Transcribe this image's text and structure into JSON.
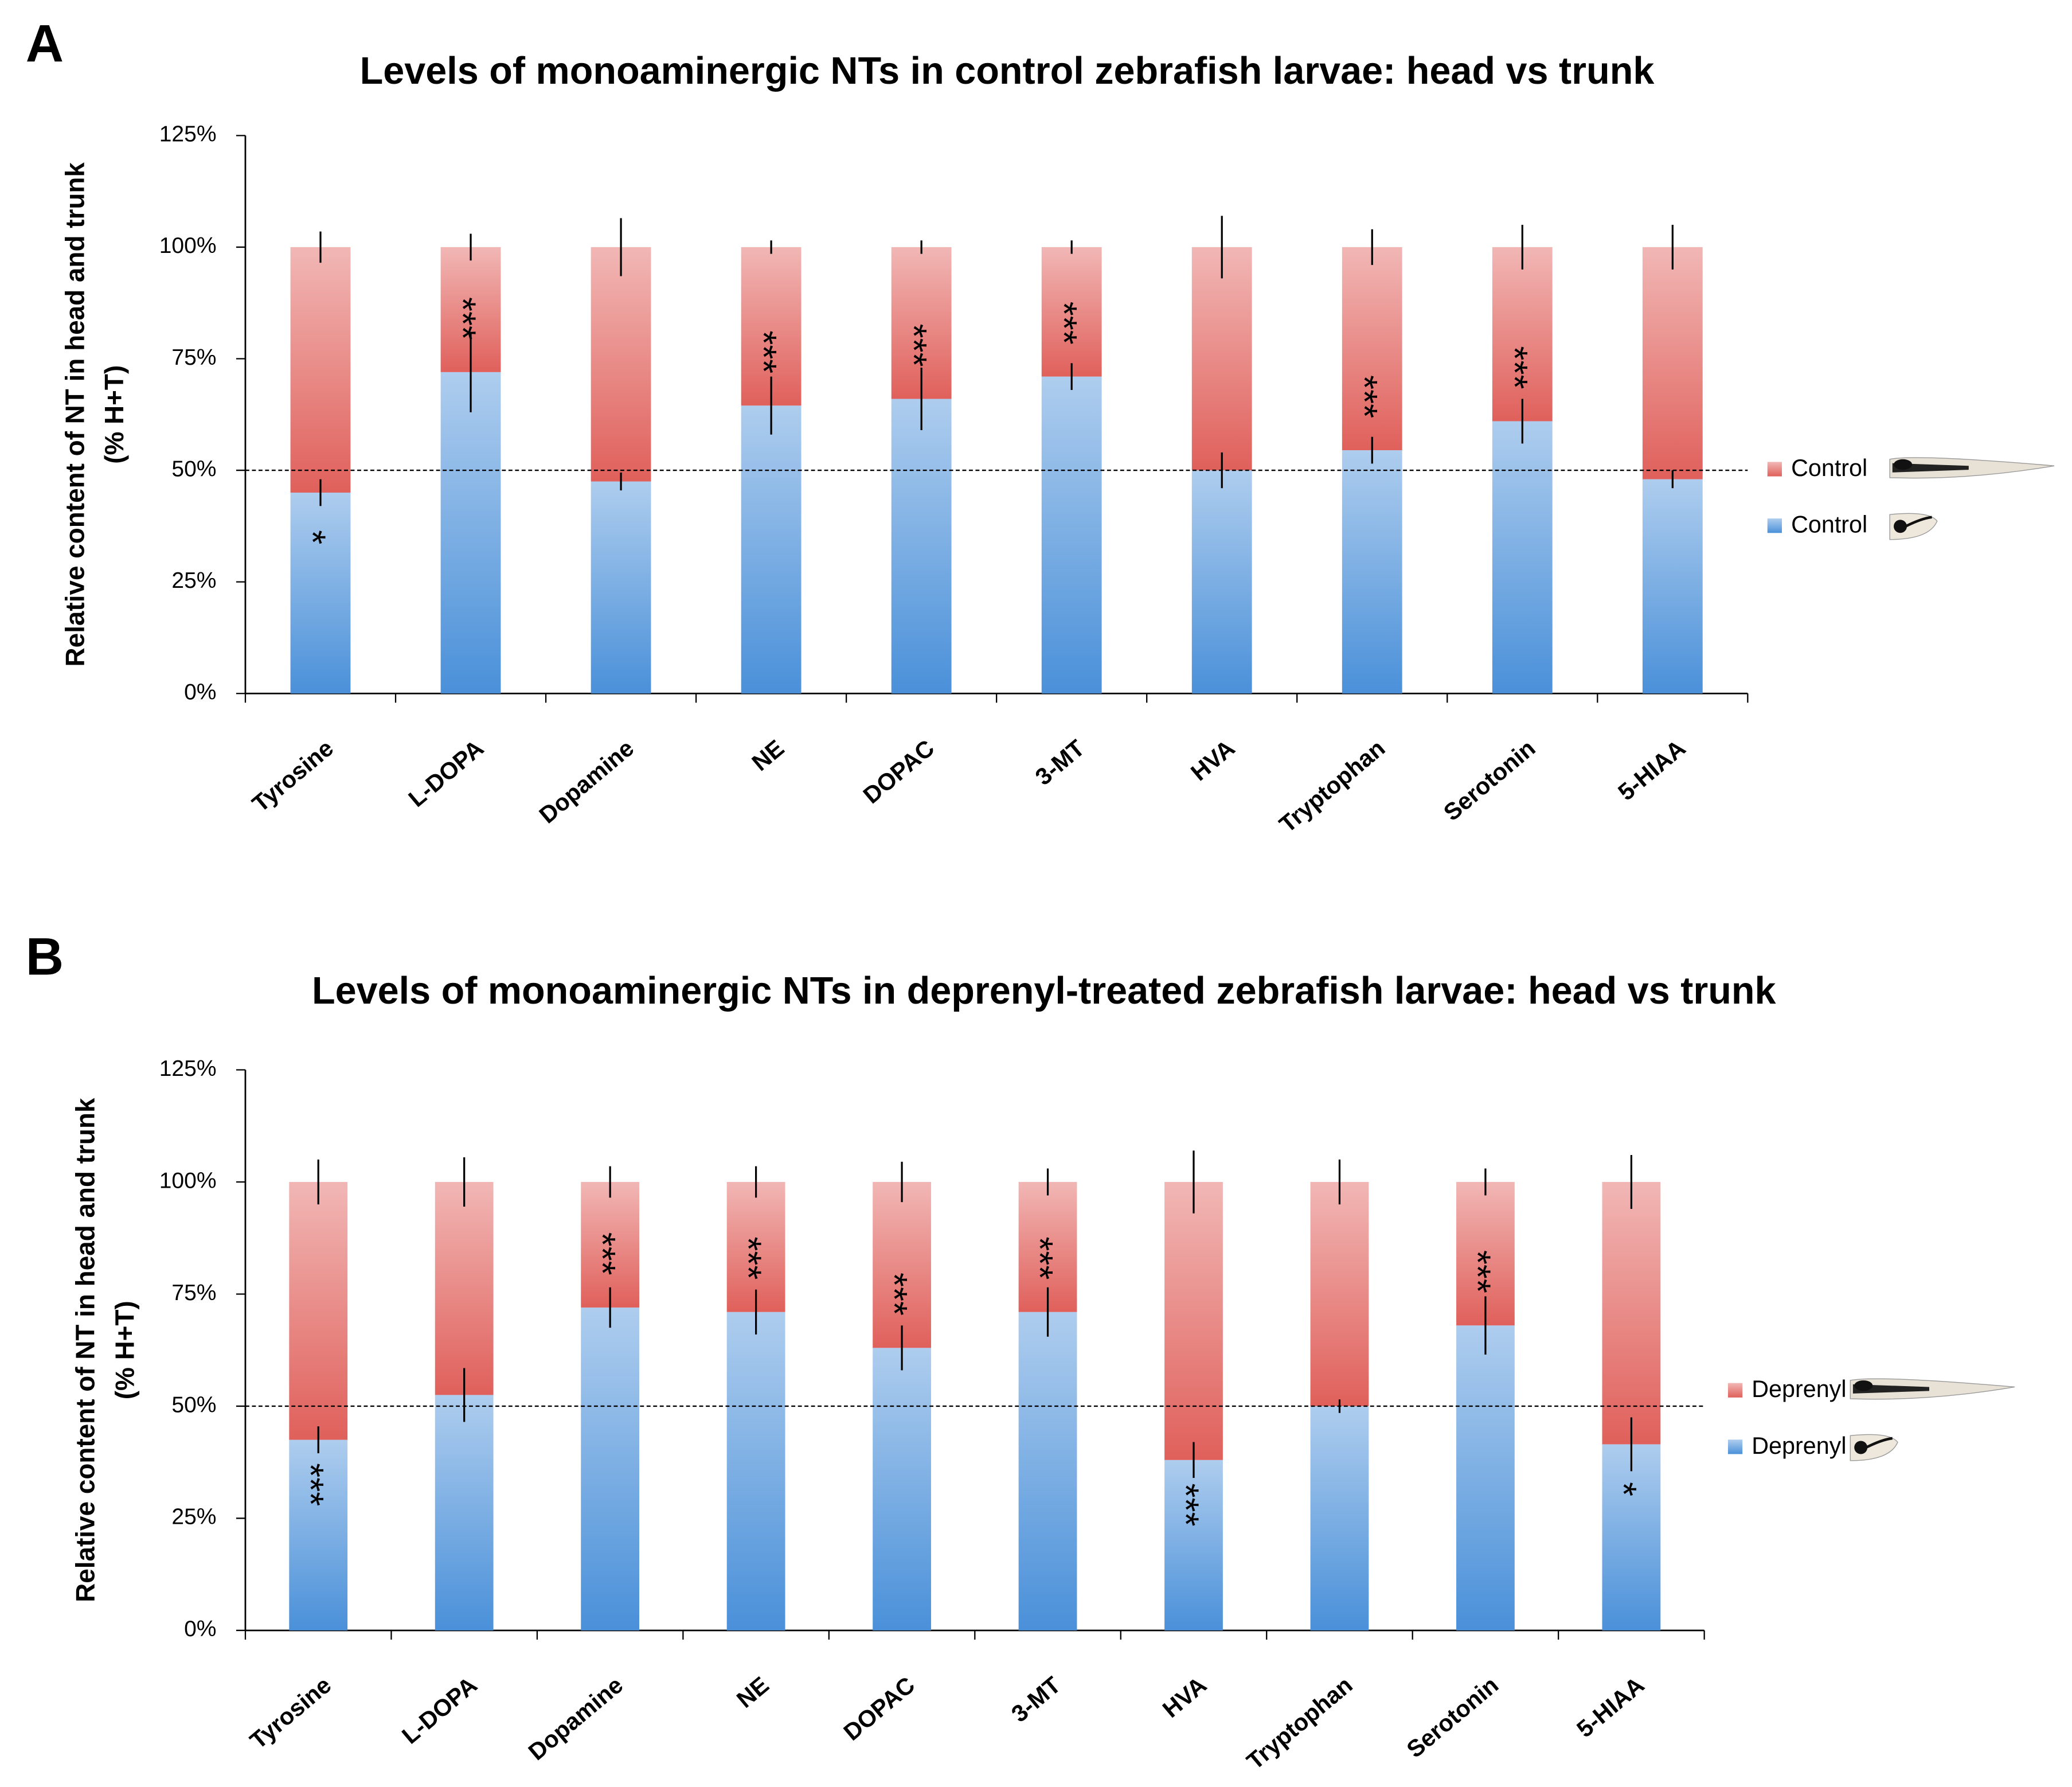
{
  "chart_data": [
    {
      "type": "bar",
      "stacked": true,
      "panel": "A",
      "title": "Levels of monoaminergic NTs in control zebrafish larvae: head vs trunk",
      "ylabel": [
        "Relative content of NT in head and trunk",
        "(% H+T)"
      ],
      "categories": [
        "Tyrosine",
        "L-DOPA",
        "Dopamine",
        "NE",
        "DOPAC",
        "3-MT",
        "HVA",
        "Tryptophan",
        "Serotonin",
        "5-HIAA"
      ],
      "series": [
        {
          "name": "Control",
          "color": "#4a90d9",
          "values": [
            45,
            72,
            47.5,
            64.5,
            66,
            71,
            50,
            54.5,
            61,
            48
          ],
          "errors": [
            3,
            9,
            2,
            6.5,
            7,
            3,
            4,
            3,
            5,
            2
          ]
        },
        {
          "name": "Control",
          "color": "#e0605b",
          "values": [
            55,
            28,
            52.5,
            35.5,
            34,
            29,
            50,
            45.5,
            39,
            52
          ],
          "errors": [
            3.5,
            3,
            6.5,
            1.5,
            1.5,
            1.5,
            7,
            4,
            5,
            5
          ]
        }
      ],
      "significance": [
        "*",
        "***",
        null,
        "***",
        "***",
        "***",
        null,
        "***",
        "***",
        null
      ],
      "ylim": [
        0,
        125
      ],
      "yticks": [
        {
          "value": 0,
          "label": "0%"
        },
        {
          "value": 25,
          "label": "25%"
        },
        {
          "value": 50,
          "label": "50%"
        },
        {
          "value": 75,
          "label": "75%"
        },
        {
          "value": 100,
          "label": "100%"
        },
        {
          "value": 125,
          "label": "125%"
        }
      ],
      "reference_line": 50,
      "grid": false,
      "legend": "right"
    },
    {
      "type": "bar",
      "stacked": true,
      "panel": "B",
      "title": "Levels of monoaminergic NTs in deprenyl-treated zebrafish larvae: head vs trunk",
      "ylabel": [
        "Relative content of NT in head and trunk",
        "(% H+T)"
      ],
      "categories": [
        "Tyrosine",
        "L-DOPA",
        "Dopamine",
        "NE",
        "DOPAC",
        "3-MT",
        "HVA",
        "Tryptophan",
        "Serotonin",
        "5-HIAA"
      ],
      "series": [
        {
          "name": "Deprenyl",
          "color": "#4a90d9",
          "values": [
            42.5,
            52.5,
            72,
            71,
            63,
            71,
            38,
            50,
            68,
            41.5
          ],
          "errors": [
            3,
            6,
            4.5,
            5,
            5,
            5.5,
            4,
            1.5,
            6.5,
            6
          ]
        },
        {
          "name": "Deprenyl",
          "color": "#e0605b",
          "values": [
            57.5,
            47.5,
            28,
            29,
            37,
            29,
            62,
            50,
            32,
            58.5
          ],
          "errors": [
            5,
            5.5,
            3.5,
            3.5,
            4.5,
            3,
            7,
            5,
            3,
            6
          ]
        }
      ],
      "significance": [
        "***",
        null,
        "***",
        "***",
        "***",
        "***",
        "***",
        null,
        "***",
        "*"
      ],
      "ylim": [
        0,
        125
      ],
      "yticks": [
        {
          "value": 0,
          "label": "0%"
        },
        {
          "value": 25,
          "label": "25%"
        },
        {
          "value": 50,
          "label": "50%"
        },
        {
          "value": 75,
          "label": "75%"
        },
        {
          "value": 100,
          "label": "100%"
        },
        {
          "value": 125,
          "label": "125%"
        }
      ],
      "reference_line": 50,
      "grid": false,
      "legend": "right"
    }
  ]
}
